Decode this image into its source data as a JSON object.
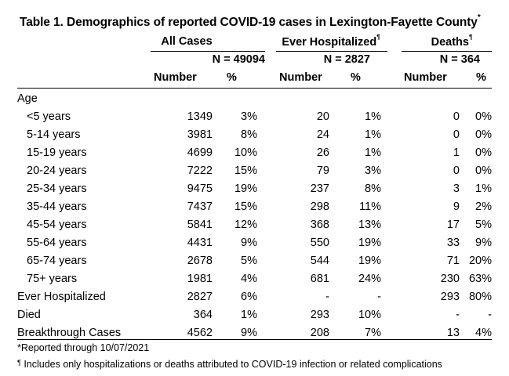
{
  "title": {
    "text": "Table 1. Demographics of reported COVID-19 cases in Lexington-Fayette County",
    "marker": "*"
  },
  "groups": [
    {
      "label": "All Cases",
      "marker": "",
      "n": "N = 49094"
    },
    {
      "label": "Ever Hospitalized",
      "marker": "¶",
      "n": "N = 2827"
    },
    {
      "label": "Deaths",
      "marker": "¶",
      "n": "N = 364"
    }
  ],
  "col_headers": {
    "number": "Number",
    "percent": "%"
  },
  "rows": [
    {
      "label": "Age",
      "indent": false,
      "cells": [
        "",
        "",
        "",
        "",
        "",
        ""
      ]
    },
    {
      "label": "<5 years",
      "indent": true,
      "cells": [
        "1349",
        "3%",
        "20",
        "1%",
        "0",
        "0%"
      ]
    },
    {
      "label": "5-14 years",
      "indent": true,
      "cells": [
        "3981",
        "8%",
        "24",
        "1%",
        "0",
        "0%"
      ]
    },
    {
      "label": "15-19 years",
      "indent": true,
      "cells": [
        "4699",
        "10%",
        "26",
        "1%",
        "1",
        "0%"
      ]
    },
    {
      "label": "20-24 years",
      "indent": true,
      "cells": [
        "7222",
        "15%",
        "79",
        "3%",
        "0",
        "0%"
      ]
    },
    {
      "label": "25-34 years",
      "indent": true,
      "cells": [
        "9475",
        "19%",
        "237",
        "8%",
        "3",
        "1%"
      ]
    },
    {
      "label": "35-44 years",
      "indent": true,
      "cells": [
        "7437",
        "15%",
        "298",
        "11%",
        "9",
        "2%"
      ]
    },
    {
      "label": "45-54 years",
      "indent": true,
      "cells": [
        "5841",
        "12%",
        "368",
        "13%",
        "17",
        "5%"
      ]
    },
    {
      "label": "55-64 years",
      "indent": true,
      "cells": [
        "4431",
        "9%",
        "550",
        "19%",
        "33",
        "9%"
      ]
    },
    {
      "label": "65-74 years",
      "indent": true,
      "cells": [
        "2678",
        "5%",
        "544",
        "19%",
        "71",
        "20%"
      ]
    },
    {
      "label": "75+ years",
      "indent": true,
      "cells": [
        "1981",
        "4%",
        "681",
        "24%",
        "230",
        "63%"
      ]
    },
    {
      "label": "Ever Hospitalized",
      "indent": false,
      "cells": [
        "2827",
        "6%",
        "-",
        "-",
        "293",
        "80%"
      ]
    },
    {
      "label": "Died",
      "indent": false,
      "cells": [
        "364",
        "1%",
        "293",
        "10%",
        "-",
        "-"
      ]
    },
    {
      "label": "Breakthrough Cases",
      "indent": false,
      "cells": [
        "4562",
        "9%",
        "208",
        "7%",
        "13",
        "4%"
      ]
    }
  ],
  "footnotes": {
    "reported": "*Reported through 10/07/2021",
    "marker": "¶",
    "hosp_note": " Includes only hospitalizations or deaths attributed to COVID-19 infection or related complications"
  }
}
